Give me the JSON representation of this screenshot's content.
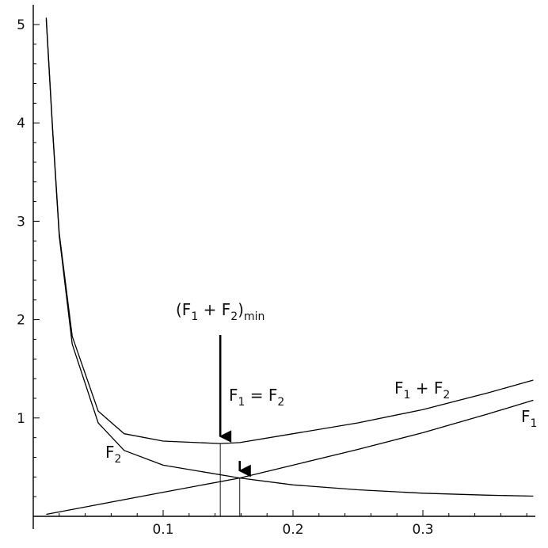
{
  "chart_data": {
    "type": "line",
    "title": "",
    "xlabel": "",
    "ylabel": "",
    "xlim": [
      0.0,
      0.385
    ],
    "ylim": [
      0.0,
      5.15
    ],
    "x_ticks": [
      0.1,
      0.2,
      0.3
    ],
    "x_tick_labels": [
      "0.1",
      "0.2",
      "0.3"
    ],
    "y_ticks": [
      1,
      2,
      3,
      4,
      5
    ],
    "y_tick_labels": [
      "1",
      "2",
      "3",
      "4",
      "5"
    ],
    "grid": false,
    "series": [
      {
        "name": "F1",
        "label_parts": [
          "F",
          "1",
          "",
          ""
        ],
        "x": [
          0.01,
          0.05,
          0.1,
          0.159,
          0.2,
          0.25,
          0.3,
          0.35,
          0.385
        ],
        "y": [
          0.02,
          0.12,
          0.245,
          0.39,
          0.52,
          0.68,
          0.85,
          1.04,
          1.18
        ]
      },
      {
        "name": "F2",
        "label_parts": [
          "F",
          "2",
          "",
          ""
        ],
        "x": [
          0.01,
          0.015,
          0.02,
          0.03,
          0.05,
          0.07,
          0.1,
          0.159,
          0.2,
          0.25,
          0.3,
          0.35,
          0.385
        ],
        "y": [
          5.05,
          3.9,
          2.85,
          1.75,
          0.95,
          0.67,
          0.52,
          0.39,
          0.32,
          0.27,
          0.235,
          0.215,
          0.205
        ]
      },
      {
        "name": "F1 + F2",
        "label_parts": [
          "F",
          "1",
          " + F",
          "2"
        ],
        "x": [
          0.01,
          0.015,
          0.02,
          0.03,
          0.05,
          0.07,
          0.1,
          0.144,
          0.159,
          0.2,
          0.25,
          0.3,
          0.35,
          0.385
        ],
        "y": [
          5.07,
          3.92,
          2.88,
          1.83,
          1.07,
          0.84,
          0.765,
          0.74,
          0.75,
          0.84,
          0.95,
          1.085,
          1.255,
          1.385
        ]
      }
    ],
    "annotations": [
      {
        "parts": [
          "F",
          "1",
          " = F",
          "2"
        ],
        "target_x": 0.159,
        "target_y": 0.39,
        "arrow_from_y": 0.75
      },
      {
        "parts": [
          "(F",
          "1",
          " + F",
          "2",
          ")",
          "min"
        ],
        "target_x": 0.144,
        "target_y": 0.74,
        "arrow_from_y": 0.82
      }
    ]
  }
}
